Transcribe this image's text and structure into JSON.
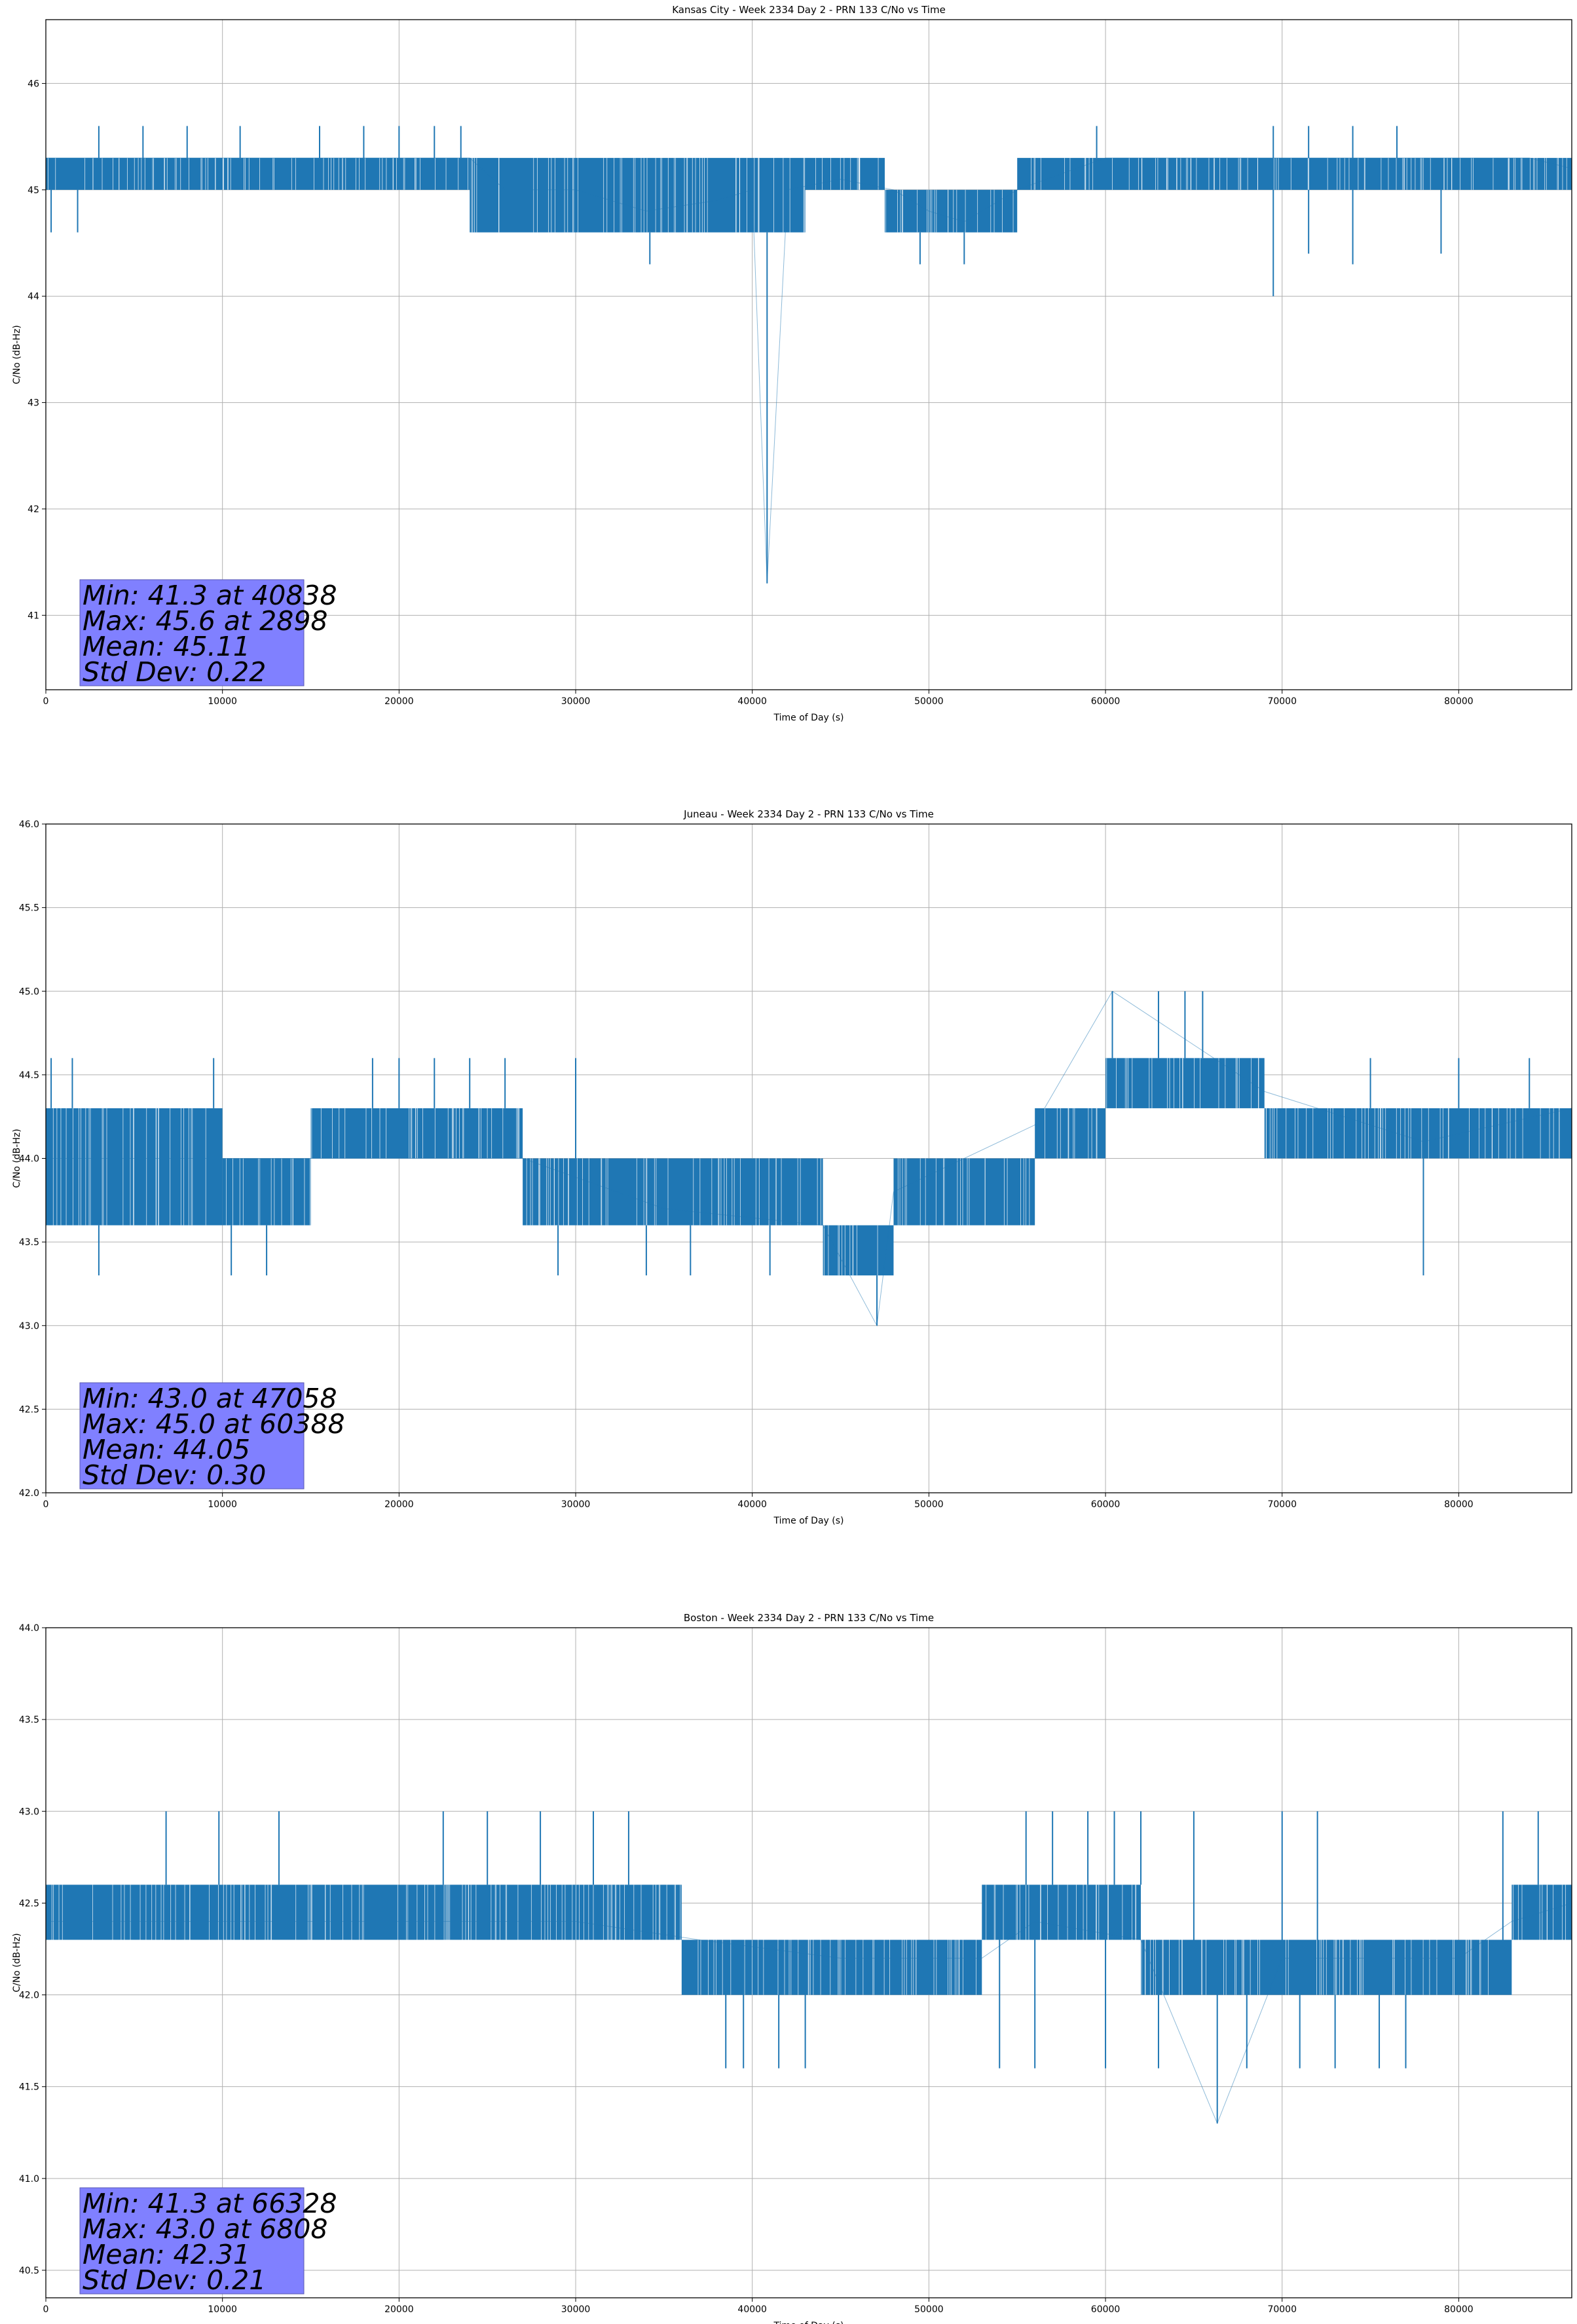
{
  "chart_data": [
    {
      "type": "line",
      "title": "Kansas City - Week 2334 Day 2 - PRN 133 C/No vs Time",
      "xlabel": "Time of Day (s)",
      "ylabel": "C/No (dB-Hz)",
      "xlim": [
        0,
        86400
      ],
      "ylim": [
        40.3,
        46.6
      ],
      "xticks": [
        0,
        10000,
        20000,
        30000,
        40000,
        50000,
        60000,
        70000,
        80000
      ],
      "yticks": [
        41,
        42,
        43,
        44,
        45,
        46
      ],
      "ytick_labels": [
        "41",
        "42",
        "43",
        "44",
        "45",
        "46"
      ],
      "grid": true,
      "color": "#1f77b4",
      "series": [
        {
          "x": [
            0,
            5000,
            10000,
            15000,
            20000,
            24000,
            26000,
            30000,
            34000,
            38000,
            40000,
            40838,
            42000,
            45000,
            48000,
            50000,
            52000,
            55000,
            60000,
            65000,
            69000,
            72000,
            76000,
            80000,
            84000,
            86400
          ],
          "values": [
            45.3,
            45.3,
            45.3,
            45.3,
            45.3,
            45.3,
            45.0,
            45.0,
            44.8,
            44.9,
            45.0,
            41.3,
            45.0,
            45.1,
            45.0,
            44.8,
            44.7,
            45.0,
            45.3,
            45.3,
            45.3,
            45.3,
            45.3,
            45.3,
            45.3,
            45.2
          ],
          "band_segments": [
            {
              "x": [
                0,
                24000
              ],
              "low": 45.0,
              "high": 45.3
            },
            {
              "x": [
                24000,
                43000
              ],
              "low": 44.6,
              "high": 45.3
            },
            {
              "x": [
                43000,
                47500
              ],
              "low": 45.0,
              "high": 45.3
            },
            {
              "x": [
                47500,
                55000
              ],
              "low": 44.6,
              "high": 45.0
            },
            {
              "x": [
                55000,
                86400
              ],
              "low": 45.0,
              "high": 45.3
            }
          ],
          "spikes_up": [
            [
              3000,
              45.6
            ],
            [
              5500,
              45.6
            ],
            [
              8000,
              45.6
            ],
            [
              11000,
              45.6
            ],
            [
              15500,
              45.6
            ],
            [
              18000,
              45.6
            ],
            [
              20000,
              45.6
            ],
            [
              22000,
              45.6
            ],
            [
              23500,
              45.6
            ],
            [
              59500,
              45.6
            ],
            [
              69500,
              45.6
            ],
            [
              71500,
              45.6
            ],
            [
              74000,
              45.6
            ],
            [
              76500,
              45.6
            ]
          ],
          "spikes_down": [
            [
              300,
              44.6
            ],
            [
              1800,
              44.6
            ],
            [
              34200,
              44.3
            ],
            [
              40838,
              41.3
            ],
            [
              49500,
              44.3
            ],
            [
              52000,
              44.3
            ],
            [
              69500,
              44.0
            ],
            [
              71500,
              44.4
            ],
            [
              74000,
              44.3
            ],
            [
              79000,
              44.4
            ]
          ]
        }
      ],
      "stats": [
        "Min: 41.3 at 40838",
        "Max: 45.6 at 2898",
        "Mean: 45.11",
        "Std Dev: 0.22"
      ]
    },
    {
      "type": "line",
      "title": "Juneau - Week 2334 Day 2 - PRN 133 C/No vs Time",
      "xlabel": "Time of Day (s)",
      "ylabel": "C/No (dB-Hz)",
      "xlim": [
        0,
        86400
      ],
      "ylim": [
        42.0,
        46.0
      ],
      "xticks": [
        0,
        10000,
        20000,
        30000,
        40000,
        50000,
        60000,
        70000,
        80000
      ],
      "yticks": [
        42.0,
        42.5,
        43.0,
        43.5,
        44.0,
        44.5,
        45.0,
        45.5,
        46.0
      ],
      "ytick_labels": [
        "42.0",
        "42.5",
        "43.0",
        "43.5",
        "44.0",
        "44.5",
        "45.0",
        "45.5",
        "46.0"
      ],
      "grid": true,
      "color": "#1f77b4",
      "series": [
        {
          "x": [
            0,
            10000,
            15000,
            27000,
            35000,
            44000,
            47058,
            48000,
            56000,
            60388,
            69000,
            78000,
            86400
          ],
          "values": [
            44.0,
            44.0,
            44.0,
            44.0,
            43.7,
            43.6,
            43.0,
            43.8,
            44.2,
            45.0,
            44.4,
            44.1,
            44.3
          ],
          "band_segments": [
            {
              "x": [
                0,
                10000
              ],
              "low": 43.6,
              "high": 44.3
            },
            {
              "x": [
                10000,
                15000
              ],
              "low": 43.6,
              "high": 44.0
            },
            {
              "x": [
                15000,
                27000
              ],
              "low": 44.0,
              "high": 44.3
            },
            {
              "x": [
                27000,
                44000
              ],
              "low": 43.6,
              "high": 44.0
            },
            {
              "x": [
                44000,
                48000
              ],
              "low": 43.3,
              "high": 43.6
            },
            {
              "x": [
                48000,
                56000
              ],
              "low": 43.6,
              "high": 44.0
            },
            {
              "x": [
                56000,
                60000
              ],
              "low": 44.0,
              "high": 44.3
            },
            {
              "x": [
                60000,
                69000
              ],
              "low": 44.3,
              "high": 44.6
            },
            {
              "x": [
                69000,
                86400
              ],
              "low": 44.0,
              "high": 44.3
            }
          ],
          "spikes_up": [
            [
              300,
              44.6
            ],
            [
              1500,
              44.6
            ],
            [
              9500,
              44.6
            ],
            [
              18500,
              44.6
            ],
            [
              20000,
              44.6
            ],
            [
              22000,
              44.6
            ],
            [
              24000,
              44.6
            ],
            [
              26000,
              44.6
            ],
            [
              30000,
              44.6
            ],
            [
              60388,
              45.0
            ],
            [
              63000,
              45.0
            ],
            [
              64500,
              45.0
            ],
            [
              65500,
              45.0
            ],
            [
              75000,
              44.6
            ],
            [
              80000,
              44.6
            ],
            [
              84000,
              44.6
            ]
          ],
          "spikes_down": [
            [
              3000,
              43.3
            ],
            [
              10500,
              43.3
            ],
            [
              12500,
              43.3
            ],
            [
              29000,
              43.3
            ],
            [
              34000,
              43.3
            ],
            [
              36500,
              43.3
            ],
            [
              41000,
              43.3
            ],
            [
              47058,
              43.0
            ],
            [
              78000,
              43.3
            ]
          ]
        }
      ],
      "stats": [
        "Min: 43.0 at 47058",
        "Max: 45.0 at 60388",
        "Mean: 44.05",
        "Std Dev: 0.30"
      ]
    },
    {
      "type": "line",
      "title": "Boston - Week 2334 Day 2 - PRN 133 C/No vs Time",
      "xlabel": "Time of Day (s)",
      "ylabel": "C/No (dB-Hz)",
      "xlim": [
        0,
        86400
      ],
      "ylim": [
        40.35,
        44.0
      ],
      "xticks": [
        0,
        10000,
        20000,
        30000,
        40000,
        50000,
        60000,
        70000,
        80000
      ],
      "yticks": [
        40.5,
        41.0,
        41.5,
        42.0,
        42.5,
        43.0,
        43.5,
        44.0
      ],
      "ytick_labels": [
        "40.5",
        "41.0",
        "41.5",
        "42.0",
        "42.5",
        "43.0",
        "43.5",
        "44.0"
      ],
      "grid": true,
      "color": "#1f77b4",
      "series": [
        {
          "x": [
            0,
            10000,
            20000,
            30000,
            37000,
            45000,
            53000,
            56000,
            62000,
            66328,
            70000,
            80000,
            83000,
            86400
          ],
          "values": [
            42.4,
            42.4,
            42.4,
            42.4,
            42.3,
            42.2,
            42.2,
            42.4,
            42.3,
            41.3,
            42.2,
            42.2,
            42.4,
            42.5
          ],
          "band_segments": [
            {
              "x": [
                0,
                36000
              ],
              "low": 42.3,
              "high": 42.6
            },
            {
              "x": [
                36000,
                53000
              ],
              "low": 42.0,
              "high": 42.3
            },
            {
              "x": [
                53000,
                62000
              ],
              "low": 42.3,
              "high": 42.6
            },
            {
              "x": [
                62000,
                83000
              ],
              "low": 42.0,
              "high": 42.3
            },
            {
              "x": [
                83000,
                86400
              ],
              "low": 42.3,
              "high": 42.6
            }
          ],
          "spikes_up": [
            [
              6808,
              43.0
            ],
            [
              9800,
              43.0
            ],
            [
              13200,
              43.0
            ],
            [
              22500,
              43.0
            ],
            [
              25000,
              43.0
            ],
            [
              28000,
              43.0
            ],
            [
              31000,
              43.0
            ],
            [
              33000,
              43.0
            ],
            [
              55500,
              43.0
            ],
            [
              57000,
              43.0
            ],
            [
              59000,
              43.0
            ],
            [
              60500,
              43.0
            ],
            [
              62000,
              43.0
            ],
            [
              65000,
              43.0
            ],
            [
              70000,
              43.0
            ],
            [
              72000,
              43.0
            ],
            [
              82500,
              43.0
            ],
            [
              84500,
              43.0
            ]
          ],
          "spikes_down": [
            [
              38500,
              41.6
            ],
            [
              39500,
              41.6
            ],
            [
              41500,
              41.6
            ],
            [
              43000,
              41.6
            ],
            [
              54000,
              41.6
            ],
            [
              56000,
              41.6
            ],
            [
              60000,
              41.6
            ],
            [
              63000,
              41.6
            ],
            [
              66328,
              41.3
            ],
            [
              68000,
              41.6
            ],
            [
              71000,
              41.6
            ],
            [
              73000,
              41.6
            ],
            [
              75500,
              41.6
            ],
            [
              77000,
              41.6
            ]
          ]
        }
      ],
      "stats": [
        "Min: 41.3 at 66328",
        "Max: 43.0 at 6808",
        "Mean: 42.31",
        "Std Dev: 0.21"
      ]
    }
  ]
}
